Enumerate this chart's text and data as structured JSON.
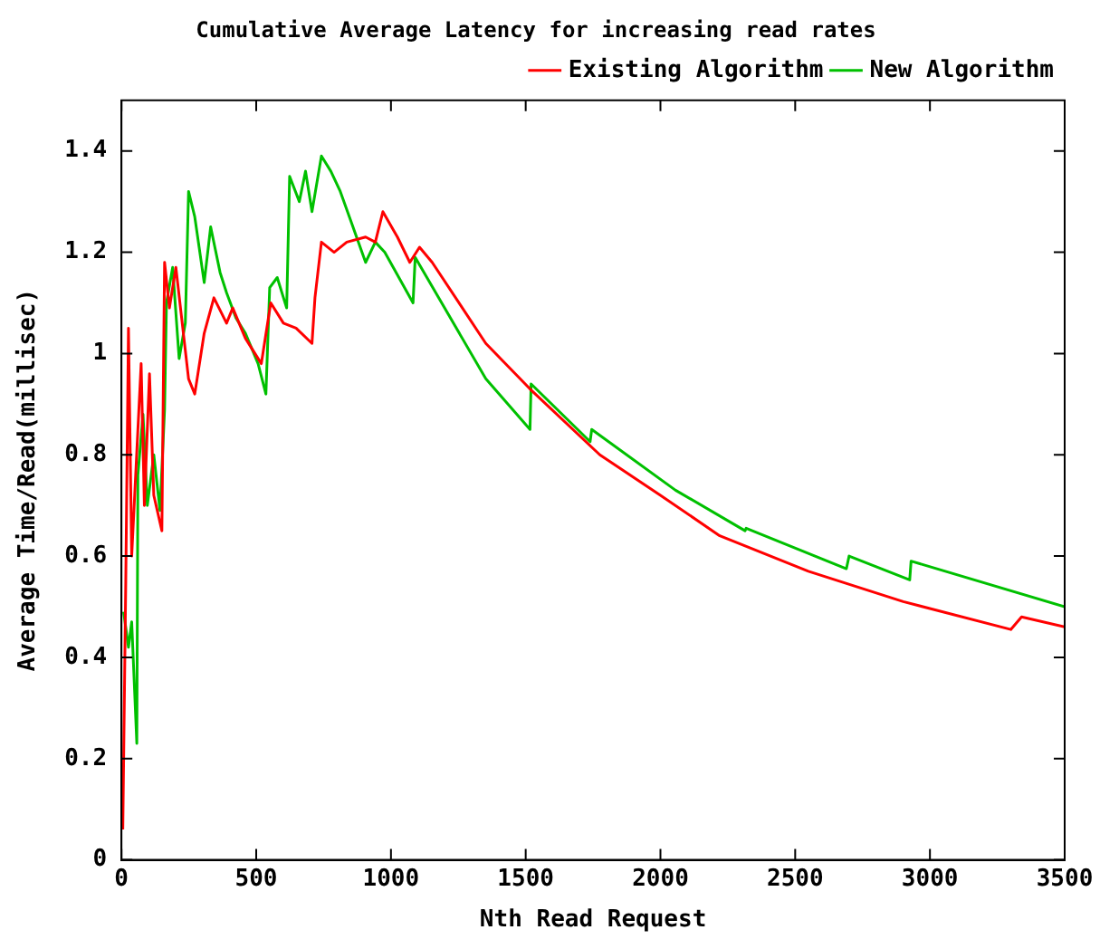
{
  "chart_data": {
    "type": "line",
    "title": "Cumulative Average Latency for increasing read rates",
    "xlabel": "Nth Read Request",
    "ylabel": "Average Time/Read(millisec)",
    "xlim": [
      0,
      3500
    ],
    "xticks": [
      0,
      500,
      1000,
      1500,
      2000,
      2500,
      3000,
      3500
    ],
    "ylim": [
      0,
      1.5
    ],
    "yticks": [
      0,
      0.2,
      0.4,
      0.6,
      0.8,
      1,
      1.2,
      1.4
    ],
    "grid": false,
    "legend": "top right",
    "marker": "none",
    "line_style": "solid",
    "series": [
      {
        "name": "Existing Algorithm",
        "color": "#ff0000",
        "x": [
          5,
          16,
          26,
          38,
          73,
          85,
          104,
          120,
          150,
          160,
          178,
          202,
          249,
          272,
          307,
          343,
          390,
          413,
          460,
          519,
          554,
          601,
          648,
          707,
          718,
          742,
          789,
          836,
          906,
          942,
          970,
          1024,
          1070,
          1106,
          1153,
          1352,
          1516,
          1775,
          2000,
          2220,
          2549,
          2901,
          3300,
          3340,
          3500
        ],
        "values": [
          0.06,
          0.55,
          1.05,
          0.6,
          0.98,
          0.7,
          0.96,
          0.72,
          0.65,
          1.18,
          1.09,
          1.17,
          0.95,
          0.92,
          1.04,
          1.11,
          1.06,
          1.09,
          1.03,
          0.98,
          1.1,
          1.06,
          1.05,
          1.02,
          1.11,
          1.22,
          1.2,
          1.22,
          1.23,
          1.22,
          1.28,
          1.23,
          1.18,
          1.21,
          1.18,
          1.02,
          0.93,
          0.8,
          0.72,
          0.64,
          0.57,
          0.51,
          0.455,
          0.48,
          0.46
        ]
      },
      {
        "name": "New Algorithm",
        "color": "#00c000",
        "x": [
          8,
          26,
          38,
          57,
          61,
          80,
          96,
          120,
          143,
          160,
          167,
          190,
          214,
          237,
          249,
          272,
          307,
          331,
          366,
          390,
          425,
          460,
          507,
          536,
          550,
          578,
          613,
          624,
          660,
          683,
          707,
          742,
          777,
          812,
          859,
          906,
          942,
          977,
          1082,
          1090,
          1352,
          1516,
          1520,
          1739,
          1745,
          2056,
          2314,
          2318,
          2690,
          2700,
          2925,
          2930,
          3500
        ],
        "values": [
          0.49,
          0.42,
          0.47,
          0.23,
          0.76,
          0.88,
          0.7,
          0.8,
          0.69,
          0.89,
          1.1,
          1.17,
          0.99,
          1.06,
          1.32,
          1.27,
          1.14,
          1.25,
          1.16,
          1.12,
          1.07,
          1.04,
          0.98,
          0.92,
          1.13,
          1.15,
          1.09,
          1.35,
          1.3,
          1.36,
          1.28,
          1.39,
          1.36,
          1.32,
          1.25,
          1.18,
          1.22,
          1.2,
          1.1,
          1.19,
          0.95,
          0.85,
          0.94,
          0.826,
          0.85,
          0.73,
          0.65,
          0.655,
          0.575,
          0.6,
          0.553,
          0.59,
          0.5
        ]
      }
    ]
  }
}
